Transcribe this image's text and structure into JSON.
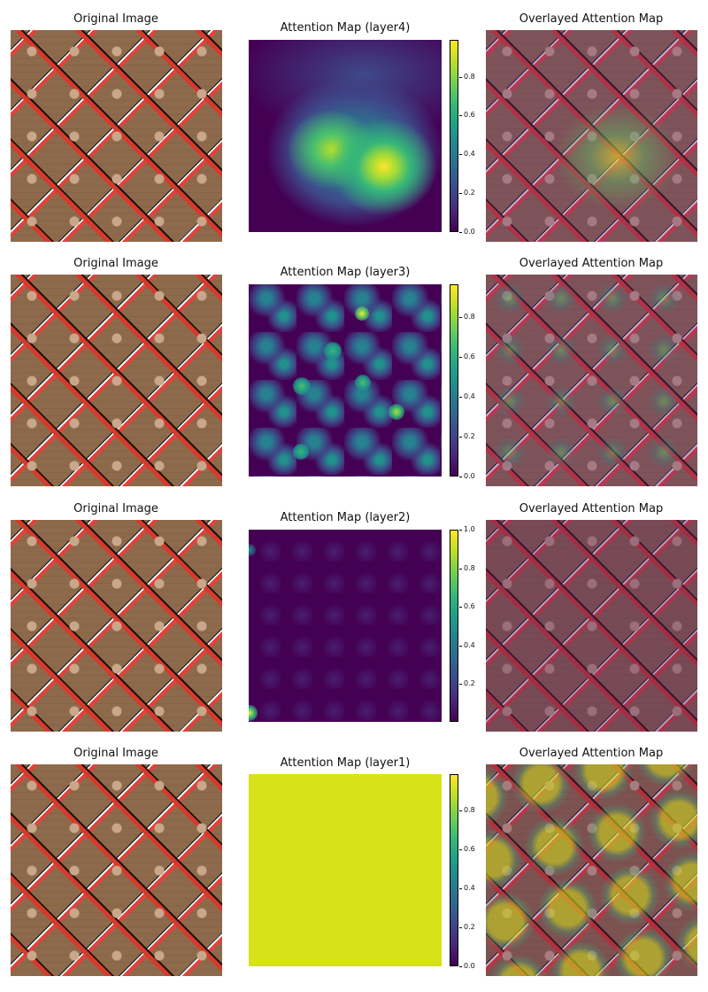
{
  "rows": [
    {
      "original_title": "Original Image",
      "attention_title": "Attention Map (layer4)",
      "overlay_title": "Overlayed Attention Map",
      "colorbar_ticks": [
        "0.0",
        "0.2",
        "0.4",
        "0.6",
        "0.8"
      ]
    },
    {
      "original_title": "Original Image",
      "attention_title": "Attention Map (layer3)",
      "overlay_title": "Overlayed Attention Map",
      "colorbar_ticks": [
        "0.0",
        "0.2",
        "0.4",
        "0.6",
        "0.8"
      ]
    },
    {
      "original_title": "Original Image",
      "attention_title": "Attention Map (layer2)",
      "overlay_title": "Overlayed Attention Map",
      "colorbar_ticks": [
        "0.2",
        "0.4",
        "0.6",
        "0.8",
        "1.0"
      ]
    },
    {
      "original_title": "Original Image",
      "attention_title": "Attention Map (layer1)",
      "overlay_title": "Overlayed Attention Map",
      "colorbar_ticks": [
        "0.0",
        "0.2",
        "0.4",
        "0.6",
        "0.8"
      ]
    }
  ],
  "colormap": "viridis",
  "colors": {
    "low": "#440154",
    "mid": "#21918c",
    "high": "#fde725"
  }
}
